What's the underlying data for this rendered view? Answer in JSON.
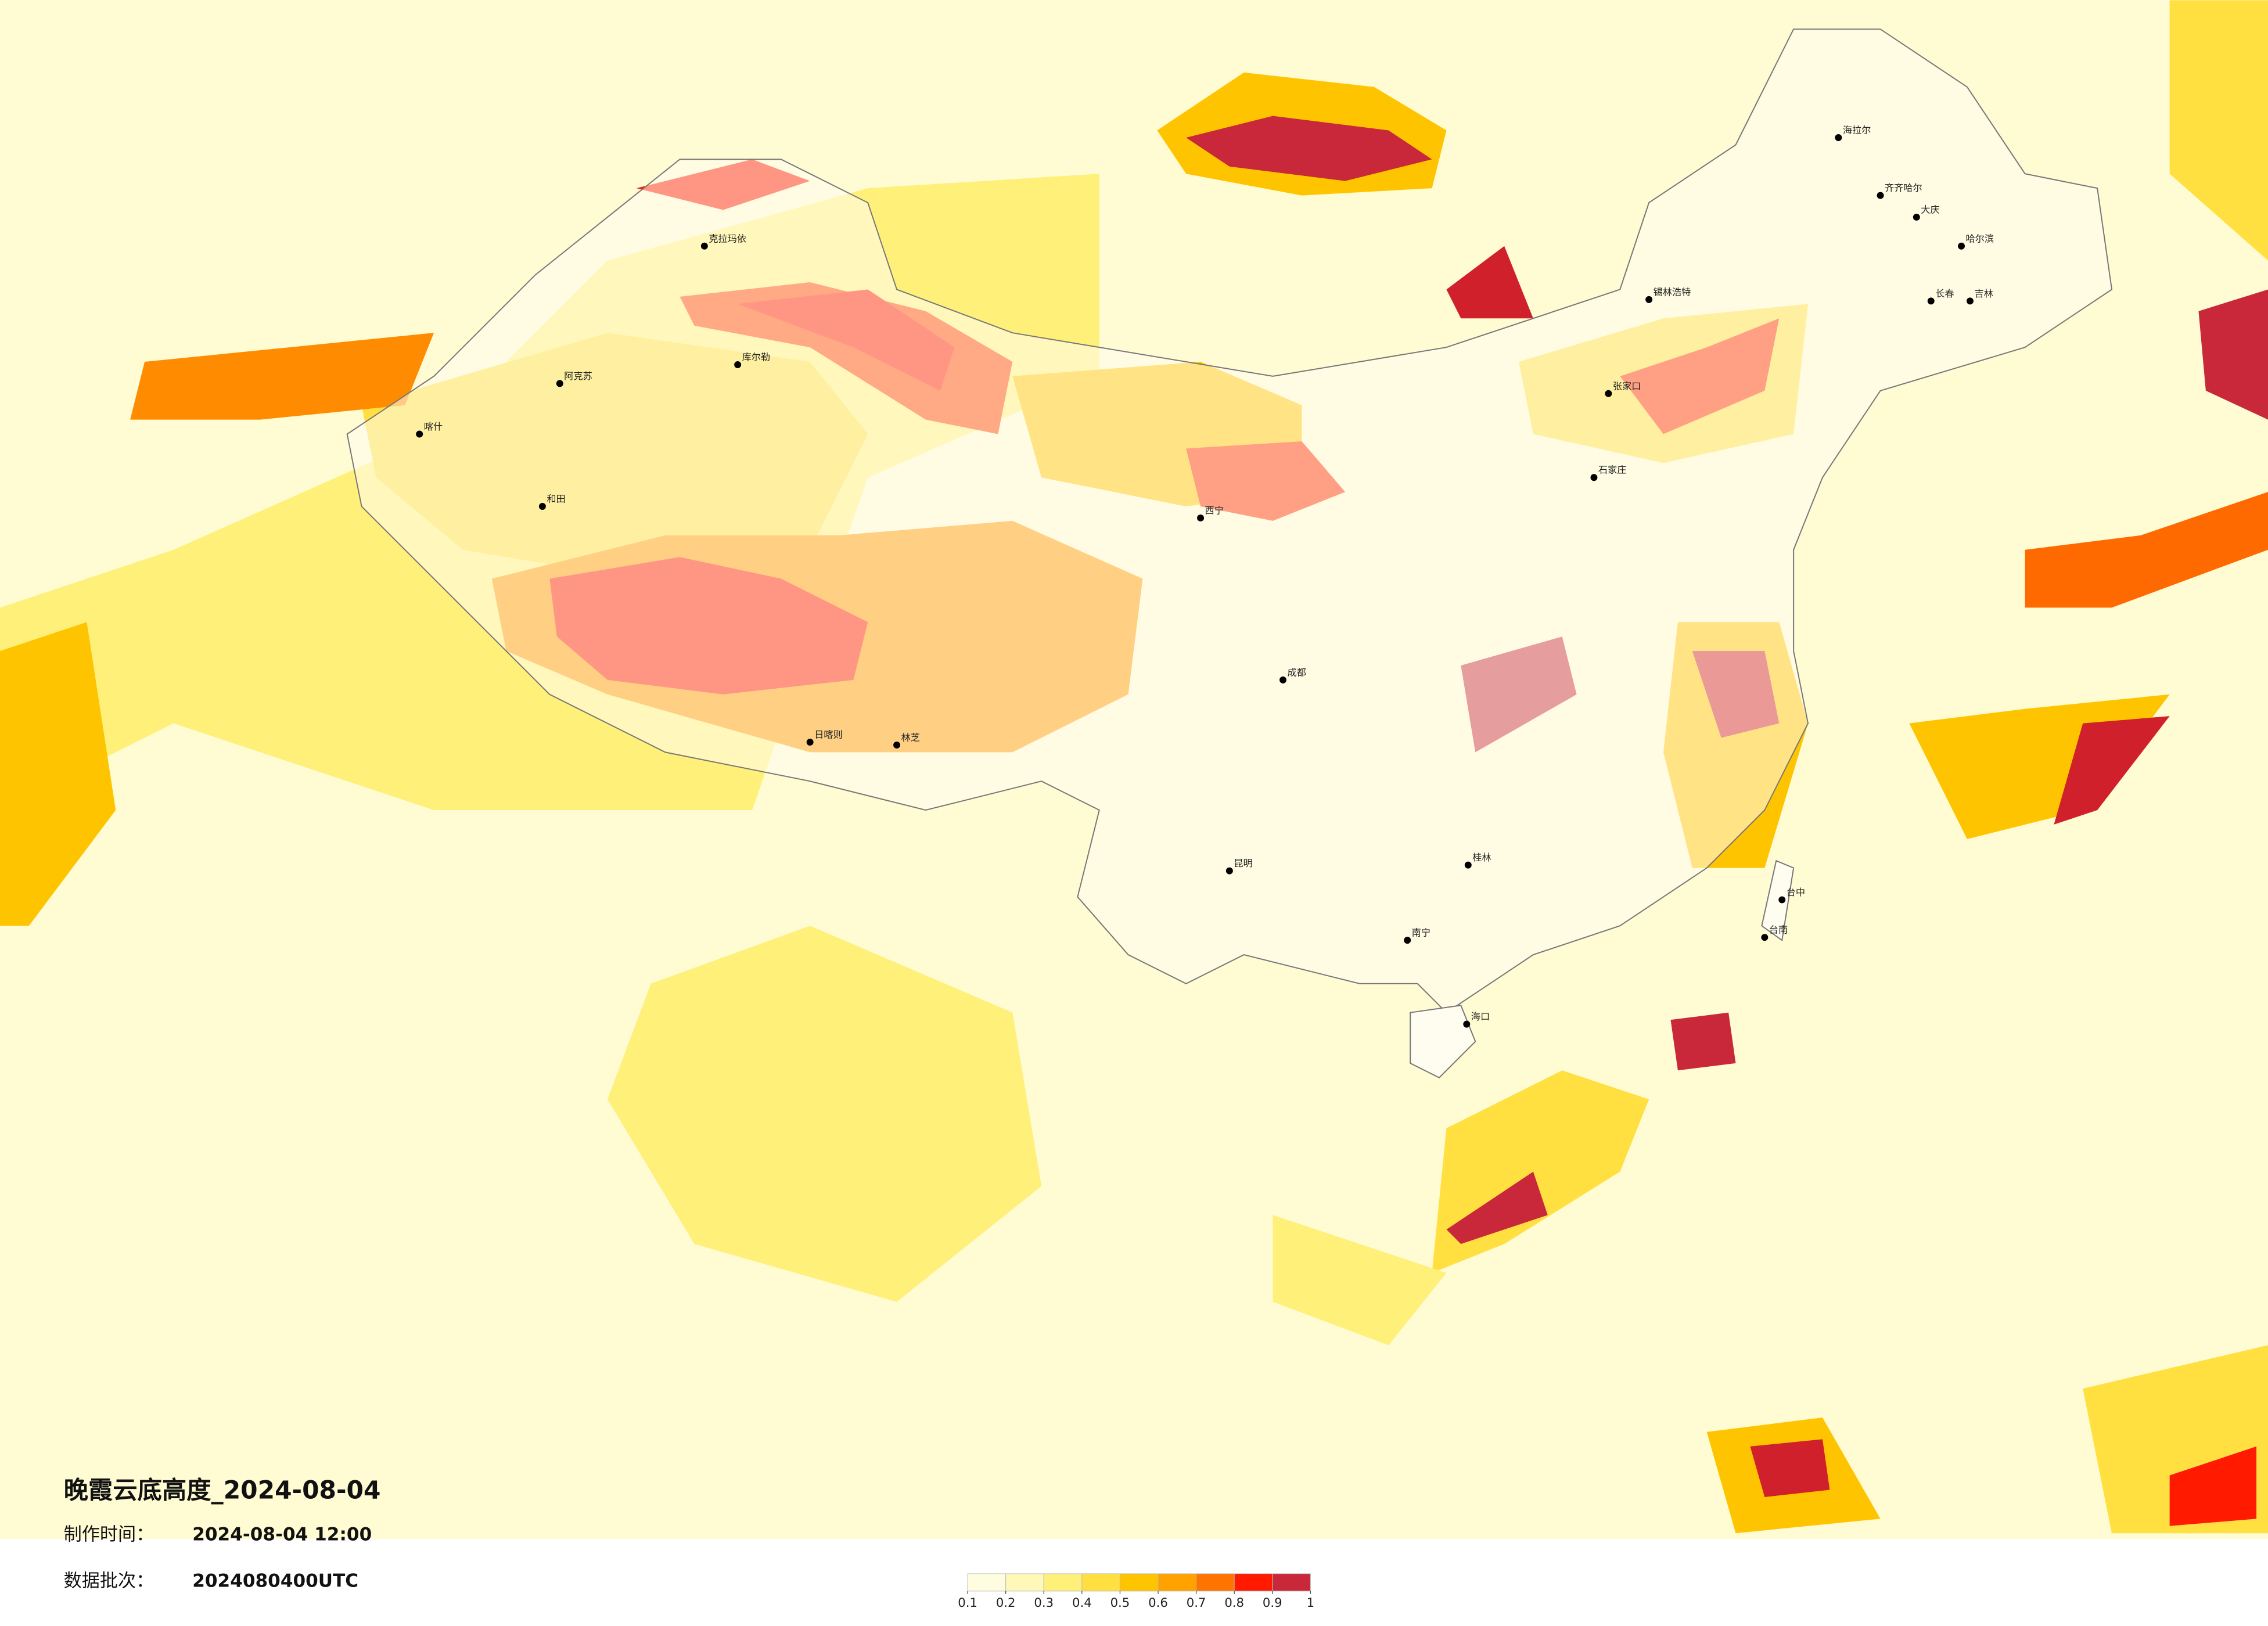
{
  "title": "晚霞云底高度_2024-08-04",
  "production_time_label": "制作时间：",
  "production_time": "2024-08-04 12:00",
  "batch_label": "数据批次：",
  "batch": "2024080400UTC",
  "colorbar": {
    "ticks": [
      0.1,
      0.2,
      0.3,
      0.4,
      0.5,
      0.6,
      0.7,
      0.8,
      0.9,
      1
    ],
    "colors": [
      "#fffde0",
      "#fff8b8",
      "#fff07a",
      "#ffe040",
      "#ffc400",
      "#ffa200",
      "#ff7400",
      "#ff1a00",
      "#c8283a"
    ]
  },
  "cities": [
    "海拉尔",
    "齐齐哈尔",
    "大庆",
    "哈尔滨",
    "长春",
    "吉林",
    "锡林浩特",
    "张家口",
    "石家庄",
    "克拉玛依",
    "库尔勒",
    "阿克苏",
    "喀什",
    "和田",
    "日喀则",
    "林芝",
    "西宁",
    "成都",
    "昆明",
    "南宁",
    "桂林",
    "海口",
    "台中",
    "台南"
  ]
}
